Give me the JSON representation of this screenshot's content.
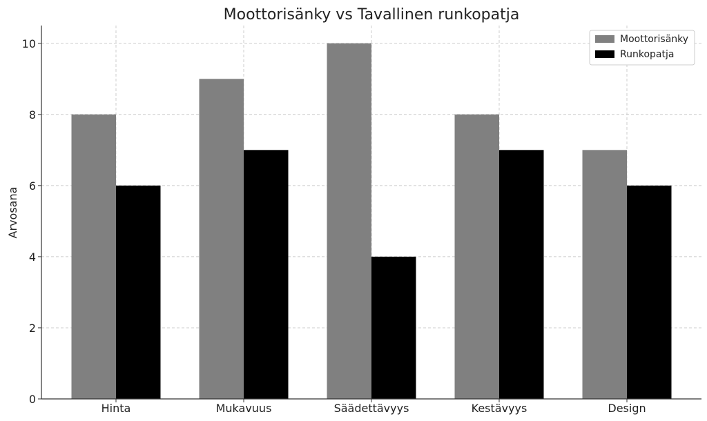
{
  "chart_data": {
    "type": "bar",
    "title": "Moottorisänky vs Tavallinen runkopatja",
    "xlabel": "",
    "ylabel": "Arvosana",
    "categories": [
      "Hinta",
      "Mukavuus",
      "Säädettävyys",
      "Kestävyys",
      "Design"
    ],
    "series": [
      {
        "name": "Moottorisänky",
        "color": "#808080",
        "values": [
          8,
          9,
          10,
          8,
          7
        ]
      },
      {
        "name": "Runkopatja",
        "color": "#000000",
        "values": [
          6,
          7,
          4,
          7,
          6
        ]
      }
    ],
    "ylim": [
      0,
      10.5
    ],
    "yticks": [
      0,
      2,
      4,
      6,
      8,
      10
    ],
    "grid": true,
    "legend_position": "top-right"
  }
}
